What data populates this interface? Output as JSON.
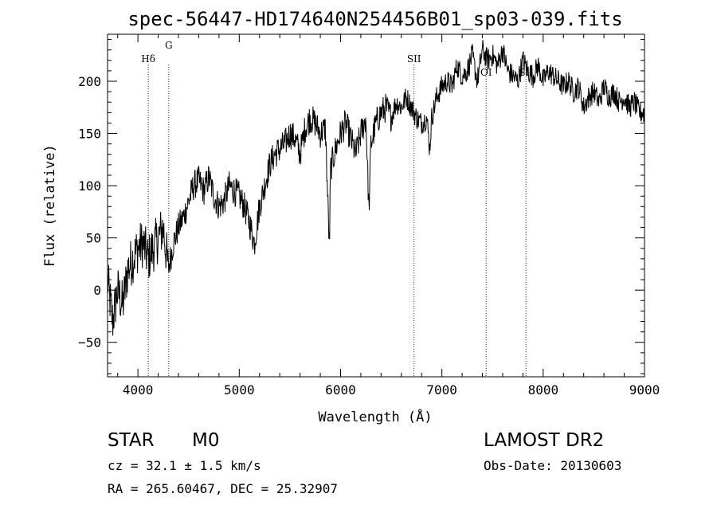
{
  "chart_data": {
    "type": "line",
    "title": "spec-56447-HD174640N254456B01_sp03-039.fits",
    "xlabel": "Wavelength (Å)",
    "ylabel": "Flux (relative)",
    "xlim": [
      3700,
      9000
    ],
    "ylim": [
      -83,
      245
    ],
    "x_ticks": [
      4000,
      5000,
      6000,
      7000,
      8000,
      9000
    ],
    "x_tick_labels": [
      "4000",
      "5000",
      "6000",
      "7000",
      "8000",
      "9000"
    ],
    "y_ticks": [
      -50,
      0,
      50,
      100,
      150,
      200
    ],
    "y_tick_labels": [
      "−50",
      "0",
      "50",
      "100",
      "150",
      "200"
    ],
    "grid": false,
    "series": [
      {
        "color": "#000000",
        "x": [
          3700,
          3750,
          3800,
          3850,
          3900,
          3950,
          4000,
          4050,
          4100,
          4150,
          4200,
          4250,
          4300,
          4350,
          4400,
          4450,
          4500,
          4550,
          4600,
          4650,
          4700,
          4750,
          4800,
          4850,
          4900,
          4950,
          5000,
          5050,
          5100,
          5150,
          5200,
          5250,
          5300,
          5350,
          5400,
          5450,
          5500,
          5550,
          5600,
          5650,
          5700,
          5750,
          5800,
          5850,
          5890,
          5900,
          5950,
          6000,
          6050,
          6100,
          6150,
          6200,
          6250,
          6280,
          6300,
          6350,
          6400,
          6450,
          6500,
          6550,
          6600,
          6650,
          6700,
          6750,
          6800,
          6850,
          6880,
          6900,
          6950,
          7000,
          7050,
          7100,
          7150,
          7200,
          7250,
          7300,
          7350,
          7400,
          7450,
          7500,
          7550,
          7600,
          7650,
          7700,
          7750,
          7800,
          7850,
          7900,
          7950,
          8000,
          8050,
          8100,
          8150,
          8200,
          8250,
          8300,
          8350,
          8400,
          8450,
          8500,
          8550,
          8600,
          8650,
          8700,
          8750,
          8800,
          8850,
          8900,
          8950,
          9000
        ],
        "y": [
          10,
          -30,
          0,
          -15,
          20,
          30,
          40,
          45,
          30,
          40,
          50,
          60,
          20,
          45,
          60,
          70,
          85,
          100,
          105,
          95,
          108,
          90,
          80,
          85,
          100,
          95,
          90,
          80,
          65,
          45,
          80,
          100,
          120,
          130,
          135,
          140,
          150,
          145,
          130,
          155,
          165,
          160,
          150,
          155,
          40,
          115,
          135,
          150,
          160,
          145,
          130,
          150,
          165,
          75,
          140,
          160,
          170,
          175,
          165,
          180,
          175,
          185,
          175,
          165,
          160,
          165,
          135,
          165,
          185,
          195,
          200,
          195,
          215,
          205,
          210,
          225,
          200,
          230,
          220,
          225,
          215,
          230,
          210,
          205,
          200,
          220,
          210,
          205,
          215,
          200,
          210,
          205,
          200,
          195,
          200,
          190,
          195,
          175,
          185,
          190,
          180,
          195,
          185,
          190,
          180,
          185,
          175,
          180,
          170,
          170
        ]
      }
    ],
    "lines": [
      {
        "label": "Hδ",
        "x": 4102
      },
      {
        "label": "G",
        "x": 4304
      },
      {
        "label": "SII",
        "x": 6725
      },
      {
        "label": "OI",
        "x": 7437
      },
      {
        "label": "SII",
        "x": 7830
      }
    ]
  },
  "footer": {
    "class_label": "STAR",
    "subclass_label": "M0",
    "cz_text": "cz = 32.1 ± 1.5 km/s",
    "coords_text": "RA = 265.60467, DEC =  25.32907",
    "survey_label": "LAMOST DR2",
    "obs_date_text": "Obs-Date: 20130603"
  }
}
